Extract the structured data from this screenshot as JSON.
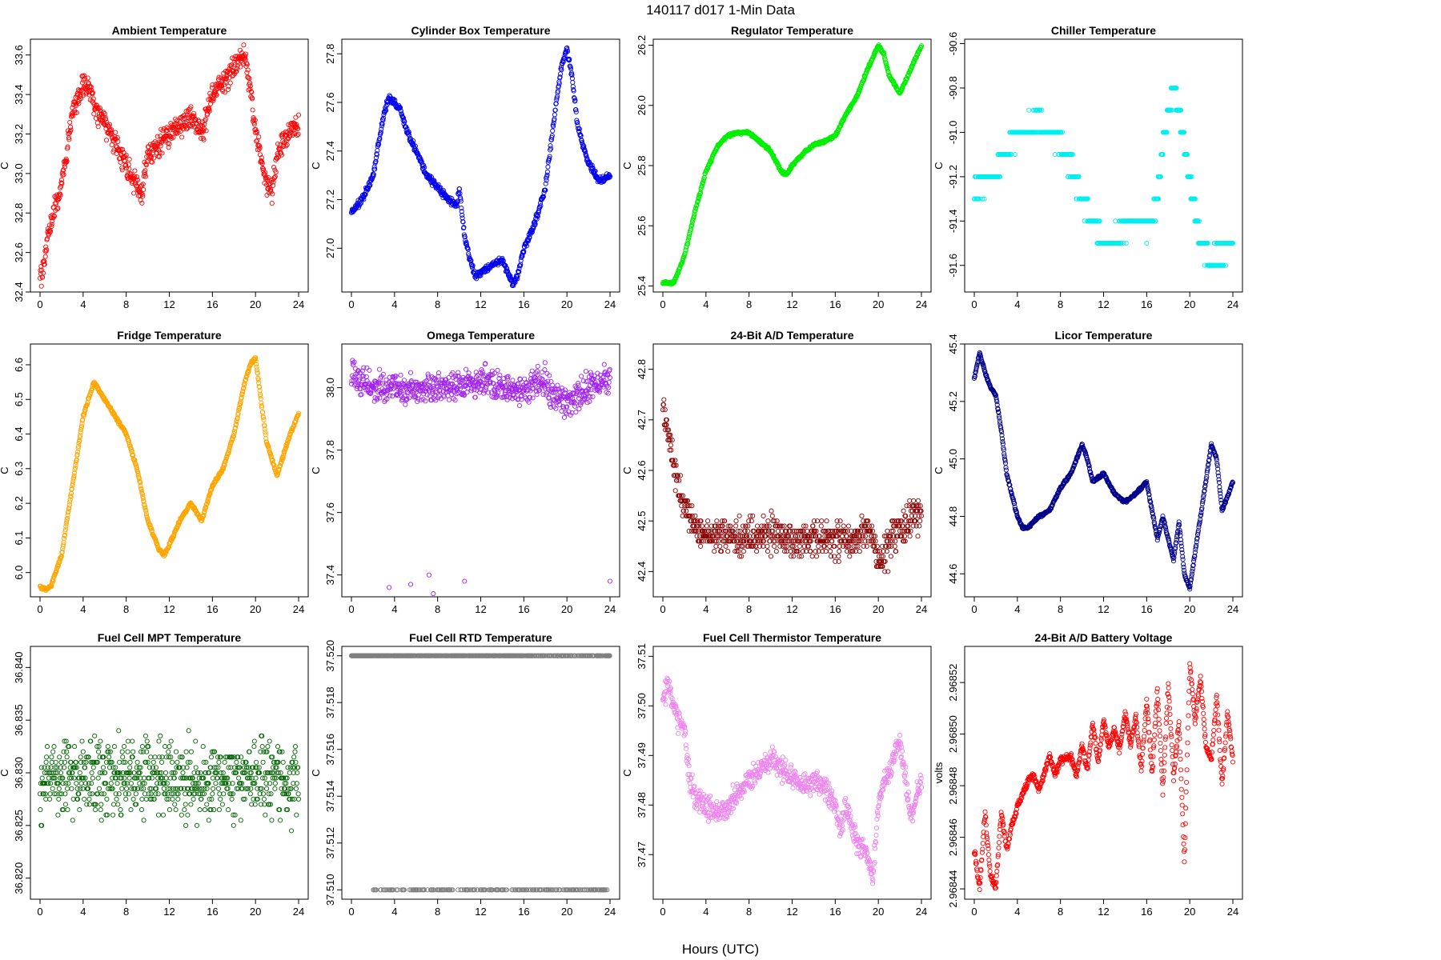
{
  "figure": {
    "title": "140117   d017   1-Min Data",
    "xlabel": "Hours (UTC)"
  },
  "chart_data": [
    {
      "type": "scatter",
      "title": "Ambient Temperature",
      "ylabel": "C",
      "color": "#ff0000",
      "xlim": [
        0,
        24
      ],
      "xticks": [
        "0",
        "4",
        "8",
        "12",
        "16",
        "20",
        "24"
      ],
      "ylim": [
        32.4,
        33.68
      ],
      "yticks": [
        "32.4",
        "32.6",
        "32.8",
        "33.0",
        "33.2",
        "33.4",
        "33.6"
      ],
      "noise": 0.05,
      "x": [
        0,
        0.5,
        1,
        2,
        3,
        4,
        4.5,
        5,
        6,
        7,
        8,
        9,
        9.5,
        10,
        11,
        12,
        13,
        14,
        15,
        16,
        17,
        18,
        19,
        19.5,
        20,
        21,
        21.5,
        22,
        23,
        24
      ],
      "y": [
        32.45,
        32.6,
        32.75,
        32.95,
        33.3,
        33.45,
        33.45,
        33.35,
        33.25,
        33.15,
        33.05,
        32.95,
        32.9,
        33.1,
        33.15,
        33.2,
        33.25,
        33.3,
        33.2,
        33.4,
        33.45,
        33.55,
        33.6,
        33.45,
        33.2,
        32.95,
        32.9,
        33.1,
        33.2,
        33.25
      ]
    },
    {
      "type": "scatter",
      "title": "Cylinder Box Temperature",
      "ylabel": "C",
      "color": "#0000ee",
      "xlim": [
        0,
        24
      ],
      "xticks": [
        "0",
        "4",
        "8",
        "12",
        "16",
        "20",
        "24"
      ],
      "ylim": [
        26.82,
        27.86
      ],
      "yticks": [
        "27.0",
        "27.2",
        "27.4",
        "27.6",
        "27.8"
      ],
      "noise": 0.012,
      "x": [
        0,
        1,
        2,
        3,
        3.5,
        4,
        4.5,
        5,
        6,
        7,
        8,
        9,
        9.8,
        10,
        10.5,
        11,
        11.5,
        12,
        13,
        14,
        14.5,
        15,
        15.5,
        16,
        17,
        18,
        19,
        19.5,
        20,
        20.5,
        21,
        22,
        23,
        24
      ],
      "y": [
        27.15,
        27.2,
        27.3,
        27.55,
        27.62,
        27.6,
        27.58,
        27.5,
        27.4,
        27.3,
        27.25,
        27.2,
        27.18,
        27.25,
        27.05,
        26.95,
        26.88,
        26.9,
        26.93,
        26.95,
        26.9,
        26.85,
        26.9,
        27.0,
        27.1,
        27.25,
        27.6,
        27.75,
        27.82,
        27.7,
        27.5,
        27.35,
        27.28,
        27.3
      ]
    },
    {
      "type": "scatter",
      "title": "Regulator Temperature",
      "ylabel": "C",
      "color": "#00ee00",
      "xlim": [
        0,
        24
      ],
      "xticks": [
        "0",
        "4",
        "8",
        "12",
        "16",
        "20",
        "24"
      ],
      "ylim": [
        25.38,
        26.22
      ],
      "yticks": [
        "25.4",
        "25.6",
        "25.8",
        "26.0",
        "26.2"
      ],
      "noise": 0.004,
      "x": [
        0,
        1,
        2,
        3,
        4,
        5,
        6,
        7,
        8,
        9,
        10,
        11,
        11.5,
        12,
        13,
        14,
        15,
        16,
        17,
        18,
        19,
        20,
        20.5,
        21,
        22,
        23,
        24
      ],
      "y": [
        25.41,
        25.41,
        25.5,
        25.65,
        25.78,
        25.86,
        25.9,
        25.91,
        25.91,
        25.88,
        25.85,
        25.78,
        25.77,
        25.8,
        25.84,
        25.87,
        25.88,
        25.9,
        25.97,
        26.03,
        26.12,
        26.2,
        26.17,
        26.1,
        26.04,
        26.12,
        26.2
      ]
    },
    {
      "type": "scatter",
      "title": "Chiller Temperature",
      "ylabel": "C",
      "color": "#00eeee",
      "xlim": [
        0,
        24
      ],
      "xticks": [
        "0",
        "4",
        "8",
        "12",
        "16",
        "20",
        "24"
      ],
      "ylim": [
        -91.72,
        -90.58
      ],
      "yticks": [
        "-91.6",
        "-91.4",
        "-91.2",
        "-91.0",
        "-90.8",
        "-90.6"
      ],
      "step": 0.1,
      "noise": 0.03,
      "x": [
        0,
        1,
        2,
        3,
        4,
        5,
        6,
        7,
        8,
        9,
        10,
        11,
        12,
        13,
        14,
        15,
        16,
        17,
        17.5,
        18,
        18.5,
        19,
        20,
        20.5,
        21,
        22,
        23,
        24
      ],
      "y": [
        -91.25,
        -91.22,
        -91.18,
        -91.1,
        -91.0,
        -90.98,
        -90.95,
        -91.0,
        -91.05,
        -91.15,
        -91.3,
        -91.4,
        -91.5,
        -91.48,
        -91.42,
        -91.38,
        -91.45,
        -91.3,
        -91.05,
        -90.9,
        -90.8,
        -90.9,
        -91.2,
        -91.35,
        -91.5,
        -91.58,
        -91.55,
        -91.5
      ]
    },
    {
      "type": "scatter",
      "title": "Fridge Temperature",
      "ylabel": "C",
      "color": "#ffa500",
      "xlim": [
        0,
        24
      ],
      "xticks": [
        "0",
        "4",
        "8",
        "12",
        "16",
        "20",
        "24"
      ],
      "ylim": [
        5.93,
        6.66
      ],
      "yticks": [
        "6.0",
        "6.1",
        "6.2",
        "6.3",
        "6.4",
        "6.5",
        "6.6"
      ],
      "noise": 0.004,
      "x": [
        0,
        0.5,
        1,
        2,
        3,
        4,
        5,
        6,
        7,
        8,
        9,
        10,
        11,
        11.5,
        12,
        13,
        14,
        15,
        16,
        17,
        18,
        19,
        19.5,
        20,
        20.5,
        21,
        22,
        23,
        24
      ],
      "y": [
        5.96,
        5.95,
        5.96,
        6.05,
        6.25,
        6.45,
        6.55,
        6.5,
        6.45,
        6.4,
        6.3,
        6.15,
        6.07,
        6.05,
        6.08,
        6.15,
        6.2,
        6.15,
        6.25,
        6.3,
        6.4,
        6.55,
        6.6,
        6.62,
        6.5,
        6.38,
        6.28,
        6.38,
        6.46
      ]
    },
    {
      "type": "scatter",
      "title": "Omega Temperature",
      "ylabel": "C",
      "color": "#a020f0",
      "xlim": [
        0,
        24
      ],
      "xticks": [
        "0",
        "4",
        "8",
        "12",
        "16",
        "20",
        "24"
      ],
      "ylim": [
        37.33,
        38.14
      ],
      "yticks": [
        "37.4",
        "37.6",
        "37.8",
        "38.0"
      ],
      "noise": 0.04,
      "x": [
        0,
        2,
        4,
        6,
        8,
        10,
        12,
        14,
        16,
        18,
        19,
        20,
        22,
        24
      ],
      "y": [
        38.05,
        38.0,
        38.0,
        38.0,
        38.0,
        38.01,
        38.02,
        38.0,
        38.0,
        38.02,
        37.97,
        37.95,
        38.0,
        38.03
      ],
      "outliers_x": [
        3.5,
        5.5,
        7.2,
        7.6,
        10.5,
        24
      ],
      "outliers_y": [
        37.36,
        37.37,
        37.4,
        37.34,
        37.38,
        37.38
      ]
    },
    {
      "type": "scatter",
      "title": "24-Bit A/D Temperature",
      "ylabel": "C",
      "color": "#8b0000",
      "xlim": [
        0,
        24
      ],
      "xticks": [
        "0",
        "4",
        "8",
        "12",
        "16",
        "20",
        "24"
      ],
      "ylim": [
        42.35,
        42.85
      ],
      "yticks": [
        "42.4",
        "42.5",
        "42.6",
        "42.7",
        "42.8"
      ],
      "step": 0.01,
      "noise": 0.03,
      "x": [
        0,
        0.5,
        1,
        2,
        3,
        4,
        6,
        8,
        10,
        12,
        14,
        16,
        18,
        19,
        19.5,
        20,
        21,
        22,
        23,
        24
      ],
      "y": [
        42.72,
        42.68,
        42.6,
        42.53,
        42.49,
        42.47,
        42.47,
        42.47,
        42.48,
        42.46,
        42.47,
        42.46,
        42.47,
        42.48,
        42.46,
        42.42,
        42.45,
        42.49,
        42.5,
        42.52
      ]
    },
    {
      "type": "scatter",
      "title": "Licor Temperature",
      "ylabel": "C",
      "color": "#00008b",
      "xlim": [
        0,
        24
      ],
      "xticks": [
        "0",
        "4",
        "8",
        "12",
        "16",
        "20",
        "24"
      ],
      "ylim": [
        44.52,
        45.4
      ],
      "yticks": [
        "44.6",
        "44.8",
        "45.0",
        "45.2",
        "45.4"
      ],
      "noise": 0.004,
      "x": [
        0,
        0.5,
        1,
        1.5,
        2,
        2.5,
        3,
        4,
        4.5,
        5,
        5.5,
        6,
        7,
        8,
        9,
        10,
        10.5,
        11,
        12,
        13,
        14,
        15,
        16,
        17,
        17.5,
        18,
        18.5,
        19,
        19.5,
        20,
        21,
        22,
        22.5,
        23,
        24
      ],
      "y": [
        45.28,
        45.37,
        45.3,
        45.25,
        45.22,
        45.1,
        44.95,
        44.8,
        44.76,
        44.76,
        44.78,
        44.8,
        44.82,
        44.9,
        44.95,
        45.05,
        45.0,
        44.92,
        44.95,
        44.88,
        44.85,
        44.88,
        44.92,
        44.72,
        44.8,
        44.72,
        44.65,
        44.78,
        44.6,
        44.55,
        44.8,
        45.05,
        45.0,
        44.82,
        44.92
      ]
    },
    {
      "type": "scatter",
      "title": "Fuel Cell MPT Temperature",
      "ylabel": "C",
      "color": "#006400",
      "xlim": [
        0,
        24
      ],
      "xticks": [
        "0",
        "4",
        "8",
        "12",
        "16",
        "20",
        "24"
      ],
      "ylim": [
        36.818,
        36.842
      ],
      "yticks": [
        "36.820",
        "36.825",
        "36.830",
        "36.835",
        "36.840"
      ],
      "step": 0.0005,
      "noise": 0.003,
      "x": [
        0,
        24
      ],
      "y": [
        36.8295,
        36.8295
      ]
    },
    {
      "type": "scatter",
      "title": "Fuel Cell RTD Temperature",
      "ylabel": "C",
      "color": "#808080",
      "xlim": [
        0,
        24
      ],
      "xticks": [
        "0",
        "4",
        "8",
        "12",
        "16",
        "20",
        "24"
      ],
      "ylim": [
        37.5096,
        37.5204
      ],
      "yticks": [
        "37.510",
        "37.512",
        "37.514",
        "37.516",
        "37.518",
        "37.520"
      ],
      "levels": [
        37.51,
        37.52
      ]
    },
    {
      "type": "scatter",
      "title": "Fuel Cell Thermistor Temperature",
      "ylabel": "C",
      "color": "#ee82ee",
      "xlim": [
        0,
        24
      ],
      "xticks": [
        "0",
        "4",
        "8",
        "12",
        "16",
        "20",
        "24"
      ],
      "ylim": [
        37.461,
        37.512
      ],
      "yticks": [
        "37.47",
        "37.48",
        "37.49",
        "37.50",
        "37.51"
      ],
      "noise": 0.002,
      "x": [
        0,
        0.5,
        1,
        1.5,
        2,
        2.5,
        3,
        4,
        5,
        6,
        7,
        8,
        9,
        10,
        11,
        12,
        13,
        14,
        15,
        16,
        16.5,
        17,
        18,
        19,
        19.5,
        20,
        20.5,
        21,
        22,
        23,
        24
      ],
      "y": [
        37.5,
        37.505,
        37.5,
        37.497,
        37.495,
        37.485,
        37.482,
        37.48,
        37.478,
        37.48,
        37.482,
        37.485,
        37.487,
        37.49,
        37.487,
        37.486,
        37.484,
        37.485,
        37.484,
        37.48,
        37.475,
        37.48,
        37.472,
        37.47,
        37.465,
        37.48,
        37.485,
        37.487,
        37.493,
        37.478,
        37.485
      ]
    },
    {
      "type": "scatter",
      "title": "24-Bit A/D Battery Voltage",
      "ylabel": "volts",
      "color": "#ff0000",
      "xlim": [
        0,
        24
      ],
      "xticks": [
        "0",
        "4",
        "8",
        "12",
        "16",
        "20",
        "24"
      ],
      "ylim": [
        2.968436,
        2.968534
      ],
      "yticks": [
        "2.96844",
        "2.96846",
        "2.96848",
        "2.96850",
        "2.96852"
      ],
      "noise": 1.2e-06,
      "x": [
        0,
        0.5,
        1,
        1.5,
        2,
        2.5,
        3,
        3.5,
        4,
        5,
        5.5,
        6,
        7,
        7.5,
        8,
        9,
        9.5,
        10,
        10.5,
        11,
        11.5,
        12,
        12.5,
        13,
        13.5,
        14,
        14.5,
        15,
        15.5,
        16,
        16.5,
        17,
        17.5,
        18,
        18.5,
        19,
        19.5,
        20,
        20.5,
        21,
        21.5,
        22,
        22.5,
        23,
        23.5,
        24
      ],
      "y": [
        2.968455,
        2.96844,
        2.96847,
        2.968445,
        2.96844,
        2.96847,
        2.968455,
        2.968465,
        2.968472,
        2.968482,
        2.968484,
        2.968478,
        2.968492,
        2.968484,
        2.96849,
        2.968491,
        2.968484,
        2.968496,
        2.968486,
        2.968504,
        2.968489,
        2.968505,
        2.968495,
        2.968502,
        2.968494,
        2.968508,
        2.968496,
        2.968507,
        2.968486,
        2.968513,
        2.968485,
        2.968517,
        2.968478,
        2.96852,
        2.968483,
        2.968505,
        2.96845,
        2.968528,
        2.968505,
        2.968522,
        2.968495,
        2.96849,
        2.968515,
        2.96848,
        2.968508,
        2.96849
      ]
    }
  ]
}
